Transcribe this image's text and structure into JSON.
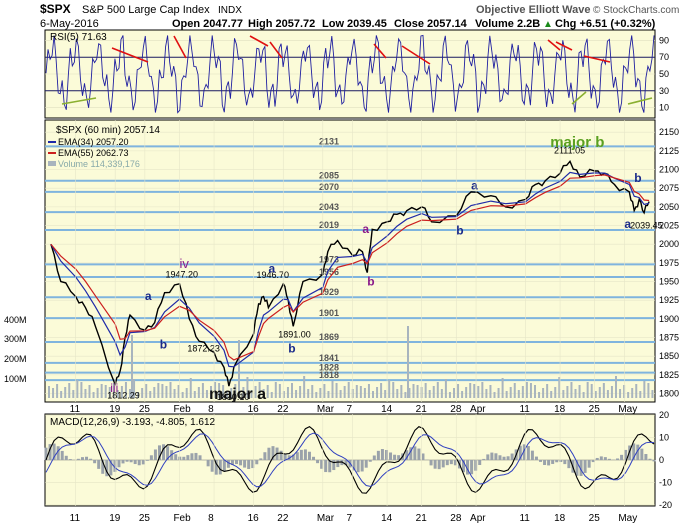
{
  "header": {
    "symbol": "$SPX",
    "name": "S&P 500 Large Cap Index",
    "exchange": "INDX",
    "date": "6-May-2016",
    "open": "Open 2047.77",
    "high": "High 2057.72",
    "low": "Low 2039.45",
    "close": "Close 2057.14",
    "volume": "Volume 2.2B",
    "change": "Chg +6.51 (+0.32%)",
    "arrow": "▲",
    "author": "Objective Elliott Wave",
    "copyright": "© StockCharts.com"
  },
  "colors": {
    "panel_bg": "#fbfbd8",
    "price": "#000000",
    "ema34": "#1f2aa8",
    "ema55": "#cc1f1f",
    "rsi": "#2020a0",
    "hline": "#7fb4de",
    "label_blue": "#1a2a8a",
    "label_purple": "#8a1a8a",
    "label_green": "#5aa020",
    "volume": "#a8b4be"
  },
  "rsi_panel": {
    "legend": "RSI(5) 71.63",
    "ticks": [
      "90",
      "70",
      "50",
      "30",
      "10"
    ]
  },
  "price_panel": {
    "legend": {
      "series": "$SPX (60 min) 2057.14",
      "ema34": "EMA(34) 2057.20",
      "ema55": "EMA(55) 2062.73",
      "volume": "Volume 114,339,176"
    },
    "y_ticks": [
      2150,
      2125,
      2100,
      2075,
      2050,
      2025,
      2000,
      1975,
      1950,
      1925,
      1900,
      1875,
      1850,
      1825,
      1800
    ],
    "vol_ticks": [
      "400M",
      "300M",
      "200M",
      "100M"
    ],
    "levels": [
      {
        "label": "2131",
        "value": 2131
      },
      {
        "label": "2085",
        "value": 2085
      },
      {
        "label": "2070",
        "value": 2070
      },
      {
        "label": "2043",
        "value": 2043
      },
      {
        "label": "2019",
        "value": 2019
      },
      {
        "label": "1973",
        "value": 1973
      },
      {
        "label": "1956",
        "value": 1956
      },
      {
        "label": "1929",
        "value": 1929
      },
      {
        "label": "1901",
        "value": 1901
      },
      {
        "label": "1869",
        "value": 1869
      },
      {
        "label": "1841",
        "value": 1841
      },
      {
        "label": "1828",
        "value": 1828
      },
      {
        "label": "1818",
        "value": 1818
      }
    ],
    "price_labels": [
      "1812.29",
      "1947.20",
      "1872.23",
      "1810.10",
      "1946.70",
      "1891.00",
      "2111.05",
      "2039.45"
    ],
    "wave_labels": [
      "iii",
      "iv",
      "a",
      "b",
      "major a",
      "a",
      "b",
      "a",
      "b",
      "a",
      "b",
      "major b",
      "b",
      "a"
    ]
  },
  "macd_panel": {
    "legend": "MACD(12,26,9) -3.193, -4.805, 1.612",
    "ticks": [
      "20",
      "10",
      "0",
      "-10",
      "-20"
    ]
  },
  "x_axis": {
    "labels": [
      "11",
      "19",
      "25",
      "Feb",
      "8",
      "16",
      "22",
      "Mar",
      "7",
      "14",
      "21",
      "28",
      "Apr",
      "11",
      "18",
      "25",
      "May"
    ]
  },
  "chart_data": {
    "type": "line",
    "title": "$SPX S&P 500 Large Cap Index INDX",
    "timeframe": "60 min",
    "period": "Jan 2016 - 6 May 2016",
    "ylim": [
      1790,
      2165
    ],
    "series": [
      {
        "name": "$SPX (60 min)",
        "x": [
          "Jan 06",
          "Jan 08",
          "Jan 11",
          "Jan 13",
          "Jan 15",
          "Jan 19",
          "Jan 20",
          "Jan 21",
          "Jan 22",
          "Jan 25",
          "Jan 27",
          "Jan 29",
          "Feb 01",
          "Feb 03",
          "Feb 05",
          "Feb 08",
          "Feb 10",
          "Feb 11",
          "Feb 12",
          "Feb 16",
          "Feb 17",
          "Feb 18",
          "Feb 19",
          "Feb 22",
          "Feb 23",
          "Feb 24",
          "Feb 26",
          "Mar 01",
          "Mar 02",
          "Mar 04",
          "Mar 07",
          "Mar 09",
          "Mar 10",
          "Mar 11",
          "Mar 14",
          "Mar 16",
          "Mar 18",
          "Mar 21",
          "Mar 23",
          "Mar 28",
          "Mar 31",
          "Apr 04",
          "Apr 07",
          "Apr 11",
          "Apr 13",
          "Apr 15",
          "Apr 18",
          "Apr 20",
          "Apr 22",
          "Apr 25",
          "Apr 27",
          "Apr 29",
          "May 02",
          "May 03",
          "May 04",
          "May 05",
          "May 06"
        ],
        "values": [
          2000,
          1950,
          1930,
          1915,
          1890,
          1812,
          1830,
          1875,
          1905,
          1885,
          1895,
          1935,
          1947,
          1900,
          1870,
          1855,
          1835,
          1810,
          1835,
          1880,
          1920,
          1930,
          1915,
          1947,
          1925,
          1890,
          1950,
          1960,
          1990,
          2005,
          1985,
          1990,
          1962,
          2020,
          2030,
          2040,
          2045,
          2050,
          2030,
          2038,
          2070,
          2065,
          2050,
          2060,
          2080,
          2085,
          2095,
          2111,
          2090,
          2098,
          2095,
          2080,
          2070,
          2045,
          2060,
          2042,
          2057
        ]
      },
      {
        "name": "EMA(34)",
        "last": 2057.2
      },
      {
        "name": "EMA(55)",
        "last": 2062.73
      }
    ],
    "rsi": {
      "period": 5,
      "last": 71.63,
      "ylim": [
        0,
        100
      ]
    },
    "macd": {
      "params": "12,26,9",
      "values": [
        -3.193,
        -4.805,
        1.612
      ],
      "ylim": [
        -20,
        20
      ]
    },
    "volume_last": 114339176,
    "grid": true,
    "legend_placement": "top-left"
  }
}
